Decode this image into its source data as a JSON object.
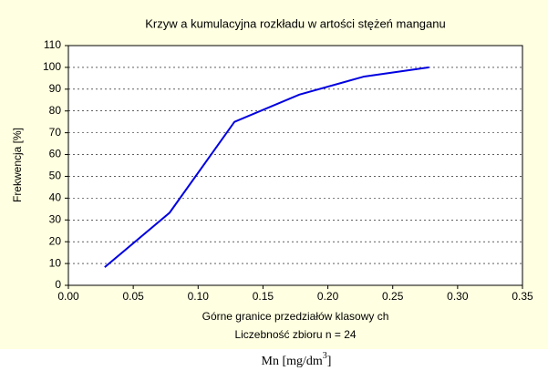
{
  "chart_data": {
    "type": "line",
    "title": "Krzyw a kumulacyjna rozkładu w artości stężeń manganu",
    "xlabel": "Górne granice przedziałów klasowy ch",
    "subtitle": "Liczebność zbioru  n = 24",
    "ylabel": "Frekwencja [%]",
    "annotation": [
      "Mn  [mg/dm",
      "3",
      "]"
    ],
    "x": [
      0.028,
      0.078,
      0.128,
      0.178,
      0.228,
      0.278
    ],
    "series": [
      {
        "name": "Frekwencja [%]",
        "color": "#0000e0",
        "values": [
          8.3,
          33.3,
          75,
          87.5,
          95.8,
          100
        ]
      }
    ],
    "xlim": [
      0,
      0.35
    ],
    "xticks": [
      {
        "value": 0,
        "label": "0.00"
      },
      {
        "value": 0.05,
        "label": "0.05"
      },
      {
        "value": 0.1,
        "label": "0.10"
      },
      {
        "value": 0.15,
        "label": "0.15"
      },
      {
        "value": 0.2,
        "label": "0.20"
      },
      {
        "value": 0.25,
        "label": "0.25"
      },
      {
        "value": 0.3,
        "label": "0.30"
      },
      {
        "value": 0.35,
        "label": "0.35"
      }
    ],
    "ylim": [
      0,
      110
    ],
    "yticks": [
      0,
      10,
      20,
      30,
      40,
      50,
      60,
      70,
      80,
      90,
      100,
      110
    ],
    "grid": true
  }
}
